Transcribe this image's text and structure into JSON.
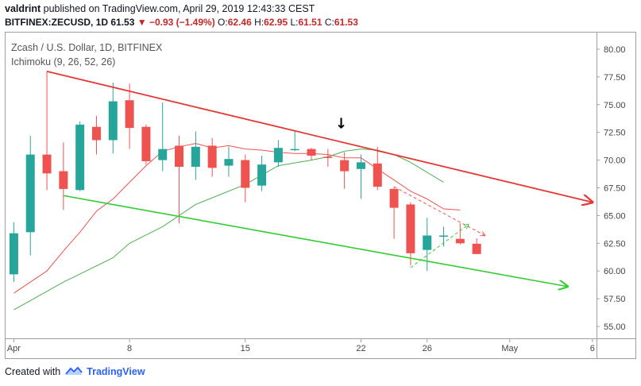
{
  "header": {
    "author": "valdrint",
    "published_text": "published on TradingView.com, April 29, 2019 12:43:33 CEST",
    "symbol": "BITFINEX:ZECUSD, 1D",
    "last": "61.53",
    "change_arrow": "▼",
    "change": "−0.93 (−1.49%)",
    "open_label": "O:",
    "open": "62.46",
    "high_label": "H:",
    "high": "62.95",
    "low_label": "L:",
    "low": "61.51",
    "close_label": "C:",
    "close": "61.53"
  },
  "footer": {
    "created_with": "Created with",
    "brand": "TradingView",
    "logo_icon": "tradingview-logo-icon"
  },
  "chart_data": {
    "type": "candlestick",
    "title": "Zcash / U.S. Dollar, 1D, BITFINEX",
    "indicator_label": "Ichimoku (9, 26, 52, 26)",
    "colors": {
      "up": "#26a69a",
      "down": "#ef5350",
      "tenkan": "#ef5350",
      "kijun": "#4caf50",
      "resistance": "#e53935",
      "support": "#33cc33",
      "marker": "#000000"
    },
    "ylim": [
      54,
      81.5
    ],
    "y_ticks": [
      "55.00",
      "57.50",
      "60.00",
      "62.50",
      "65.00",
      "67.50",
      "70.00",
      "72.50",
      "75.00",
      "77.50",
      "80.00"
    ],
    "xlim": [
      0.5,
      36.2
    ],
    "x_ticks": [
      {
        "label": "Apr",
        "day": 1
      },
      {
        "label": "8",
        "day": 8
      },
      {
        "label": "15",
        "day": 15
      },
      {
        "label": "22",
        "day": 22
      },
      {
        "label": "26",
        "day": 26
      },
      {
        "label": "May",
        "day": 31
      },
      {
        "label": "6",
        "day": 36
      }
    ],
    "candles": [
      {
        "day": 1,
        "o": 59.7,
        "h": 64.4,
        "l": 59.0,
        "c": 63.4
      },
      {
        "day": 2,
        "o": 63.5,
        "h": 72.2,
        "l": 61.4,
        "c": 70.5
      },
      {
        "day": 3,
        "o": 70.5,
        "h": 78.0,
        "l": 67.3,
        "c": 68.8
      },
      {
        "day": 4,
        "o": 69.0,
        "h": 71.6,
        "l": 65.5,
        "c": 67.4
      },
      {
        "day": 5,
        "o": 67.3,
        "h": 73.5,
        "l": 67.2,
        "c": 73.2
      },
      {
        "day": 6,
        "o": 73.0,
        "h": 74.0,
        "l": 70.5,
        "c": 71.8
      },
      {
        "day": 7,
        "o": 71.8,
        "h": 77.0,
        "l": 70.6,
        "c": 75.3
      },
      {
        "day": 8,
        "o": 75.4,
        "h": 76.9,
        "l": 71.0,
        "c": 72.9
      },
      {
        "day": 9,
        "o": 73.0,
        "h": 73.2,
        "l": 69.6,
        "c": 69.9
      },
      {
        "day": 10,
        "o": 70.0,
        "h": 75.2,
        "l": 69.0,
        "c": 71.0
      },
      {
        "day": 11,
        "o": 71.3,
        "h": 72.2,
        "l": 64.3,
        "c": 69.4
      },
      {
        "day": 12,
        "o": 69.4,
        "h": 72.6,
        "l": 68.2,
        "c": 71.2
      },
      {
        "day": 13,
        "o": 71.3,
        "h": 72.0,
        "l": 68.5,
        "c": 69.3
      },
      {
        "day": 14,
        "o": 69.5,
        "h": 71.2,
        "l": 68.5,
        "c": 70.1
      },
      {
        "day": 15,
        "o": 70.0,
        "h": 70.5,
        "l": 66.2,
        "c": 67.5
      },
      {
        "day": 16,
        "o": 67.7,
        "h": 70.4,
        "l": 67.2,
        "c": 69.6
      },
      {
        "day": 17,
        "o": 69.8,
        "h": 71.8,
        "l": 69.4,
        "c": 71.1
      },
      {
        "day": 18,
        "o": 71.0,
        "h": 72.6,
        "l": 70.8,
        "c": 71.0
      },
      {
        "day": 19,
        "o": 71.0,
        "h": 71.1,
        "l": 70.0,
        "c": 70.4
      },
      {
        "day": 20,
        "o": 70.3,
        "h": 71.0,
        "l": 69.4,
        "c": 70.2
      },
      {
        "day": 21,
        "o": 70.0,
        "h": 70.7,
        "l": 67.4,
        "c": 69.0
      },
      {
        "day": 22,
        "o": 69.2,
        "h": 70.5,
        "l": 66.5,
        "c": 69.8
      },
      {
        "day": 23,
        "o": 69.7,
        "h": 71.2,
        "l": 67.3,
        "c": 67.6
      },
      {
        "day": 24,
        "o": 67.4,
        "h": 67.6,
        "l": 62.9,
        "c": 65.7
      },
      {
        "day": 25,
        "o": 66.0,
        "h": 66.2,
        "l": 60.5,
        "c": 61.6
      },
      {
        "day": 26,
        "o": 61.9,
        "h": 64.8,
        "l": 60.0,
        "c": 63.2
      },
      {
        "day": 27,
        "o": 63.2,
        "h": 64.0,
        "l": 62.2,
        "c": 63.2
      },
      {
        "day": 28,
        "o": 62.9,
        "h": 64.3,
        "l": 62.4,
        "c": 62.5
      },
      {
        "day": 29,
        "o": 62.46,
        "h": 62.95,
        "l": 61.51,
        "c": 61.53
      }
    ],
    "tenkan_line": [
      [
        1,
        58.0
      ],
      [
        3,
        60.0
      ],
      [
        4,
        61.8
      ],
      [
        5,
        63.5
      ],
      [
        6,
        65.4
      ],
      [
        7,
        66.5
      ],
      [
        8,
        68.0
      ],
      [
        9,
        69.5
      ],
      [
        10,
        70.8
      ],
      [
        11,
        71.2
      ],
      [
        12,
        71.5
      ],
      [
        13,
        71.1
      ],
      [
        14,
        71.3
      ],
      [
        15,
        71.0
      ],
      [
        16,
        70.9
      ],
      [
        17,
        70.7
      ],
      [
        18,
        70.6
      ],
      [
        19,
        70.6
      ],
      [
        20,
        70.5
      ],
      [
        21,
        70.2
      ],
      [
        22,
        70.2
      ],
      [
        23,
        69.2
      ],
      [
        24,
        68.2
      ],
      [
        25,
        67.2
      ],
      [
        26,
        66.5
      ],
      [
        27,
        65.6
      ],
      [
        28,
        65.5
      ]
    ],
    "kijun_line": [
      [
        1,
        56.5
      ],
      [
        4,
        59.0
      ],
      [
        7,
        61.2
      ],
      [
        8,
        62.5
      ],
      [
        10,
        64.0
      ],
      [
        12,
        66.0
      ],
      [
        15,
        67.8
      ],
      [
        17,
        69.5
      ],
      [
        19,
        70.0
      ],
      [
        20,
        70.3
      ],
      [
        21,
        70.8
      ],
      [
        22,
        71.0
      ],
      [
        23,
        70.9
      ],
      [
        24,
        70.5
      ],
      [
        25,
        69.8
      ],
      [
        27,
        68.0
      ]
    ],
    "resistance_line": {
      "from": [
        3,
        78.0
      ],
      "to": [
        36,
        66.2
      ],
      "arrow": true
    },
    "support_line": {
      "from": [
        4,
        66.8
      ],
      "to": [
        34.5,
        58.6
      ],
      "arrow": true
    },
    "wedge_upper": {
      "from": [
        24,
        67.6
      ],
      "to": [
        29.5,
        63.2
      ],
      "arrow": true
    },
    "wedge_lower": {
      "from": [
        25,
        60.3
      ],
      "to": [
        28.5,
        64.2
      ],
      "arrow": true
    },
    "marker": {
      "day": 20.8,
      "y": 73.3,
      "symbol": "↓"
    }
  }
}
